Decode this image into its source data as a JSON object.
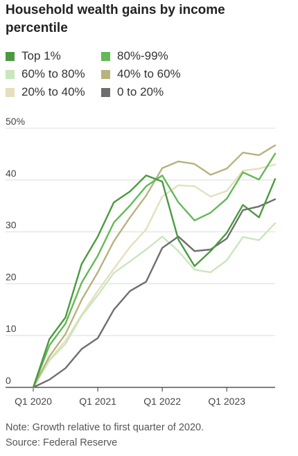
{
  "title": "Household wealth gains by income percentile",
  "note": "Note: Growth relative to first quarter of 2020.",
  "source": "Source: Federal Reserve",
  "chart_data": {
    "type": "line",
    "title": "Household wealth gains by income percentile",
    "xlabel": "",
    "ylabel": "",
    "ylim": [
      0,
      50
    ],
    "y_ticks": [
      {
        "value": 0,
        "label": "0"
      },
      {
        "value": 10,
        "label": "10"
      },
      {
        "value": 20,
        "label": "20"
      },
      {
        "value": 30,
        "label": "30"
      },
      {
        "value": 40,
        "label": "40"
      },
      {
        "value": 50,
        "label": "50%"
      }
    ],
    "x_ticks": [
      "Q1 2020",
      "Q1 2021",
      "Q1 2022",
      "Q1 2023"
    ],
    "x": [
      "2020Q1",
      "2020Q2",
      "2020Q3",
      "2020Q4",
      "2021Q1",
      "2021Q2",
      "2021Q3",
      "2021Q4",
      "2022Q1",
      "2022Q2",
      "2022Q3",
      "2022Q4",
      "2023Q1",
      "2023Q2",
      "2023Q3",
      "2023Q4"
    ],
    "grid": true,
    "legend_position": "top",
    "series": [
      {
        "name": "Top 1%",
        "color": "#4a9a3f",
        "values": [
          0,
          9.3,
          13.5,
          23.8,
          29.1,
          35.7,
          37.8,
          40.9,
          39.7,
          28.5,
          23.4,
          26.3,
          29.8,
          35.2,
          32.8,
          40.2
        ]
      },
      {
        "name": "80%-99%",
        "color": "#62b956",
        "values": [
          0,
          8.1,
          12.3,
          20.2,
          25.4,
          31.8,
          35.1,
          38.8,
          40.9,
          35.7,
          32.2,
          33.7,
          36.4,
          41.5,
          40.1,
          45.1
        ]
      },
      {
        "name": "60% to 80%",
        "color": "#c9e6bd",
        "values": [
          0,
          5.2,
          8.4,
          13.8,
          17.8,
          22.1,
          24.3,
          26.6,
          29.1,
          26.3,
          22.7,
          22.2,
          24.5,
          29.0,
          28.4,
          31.7
        ]
      },
      {
        "name": "40% to 60%",
        "color": "#b8b27d",
        "values": [
          0,
          6.0,
          10.3,
          16.9,
          22.2,
          28.2,
          32.8,
          37.0,
          42.3,
          43.6,
          43.1,
          41.0,
          42.2,
          45.3,
          44.8,
          46.7
        ]
      },
      {
        "name": "20% to 40%",
        "color": "#e5dfbe",
        "values": [
          0,
          5.4,
          9.0,
          14.0,
          18.6,
          22.9,
          27.1,
          30.5,
          36.8,
          39.0,
          38.8,
          36.8,
          37.9,
          41.8,
          42.2,
          43.0
        ]
      },
      {
        "name": "0 to 20%",
        "color": "#6e6e6e",
        "values": [
          0,
          1.5,
          3.7,
          7.4,
          9.5,
          15.0,
          18.6,
          20.4,
          26.9,
          29.1,
          26.3,
          26.6,
          28.7,
          34.2,
          34.9,
          36.3
        ]
      }
    ]
  }
}
